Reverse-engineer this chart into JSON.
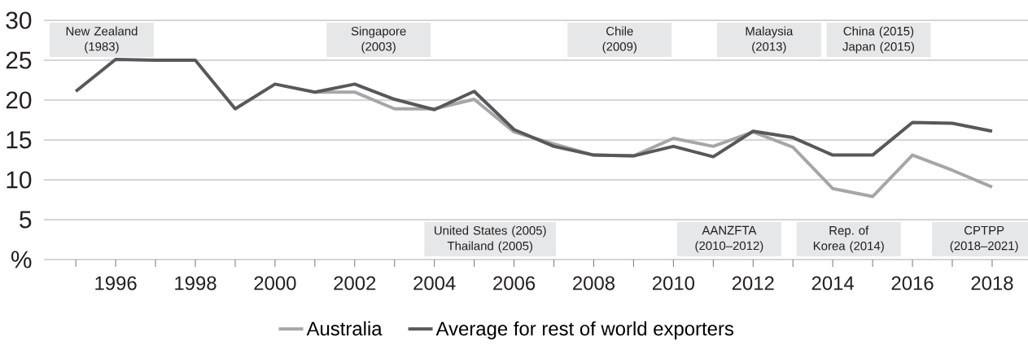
{
  "chart_data": {
    "type": "line",
    "x": [
      1995,
      1996,
      1997,
      1998,
      1999,
      2000,
      2001,
      2002,
      2003,
      2004,
      2005,
      2006,
      2007,
      2008,
      2009,
      2010,
      2011,
      2012,
      2013,
      2014,
      2015,
      2016,
      2017,
      2018
    ],
    "series": [
      {
        "name": "Australia",
        "color": "#a6a6a8",
        "values": [
          null,
          null,
          null,
          null,
          null,
          null,
          21.0,
          21.0,
          18.9,
          18.9,
          20.1,
          16.0,
          14.5,
          13.1,
          13.0,
          15.2,
          14.2,
          16.0,
          14.1,
          8.9,
          7.9,
          13.1,
          11.2,
          9.1
        ]
      },
      {
        "name": "Average for rest of world exporters",
        "color": "#58585a",
        "values": [
          21.1,
          25.1,
          25.0,
          25.0,
          18.9,
          22.0,
          21.0,
          22.0,
          20.1,
          18.8,
          21.1,
          16.3,
          14.2,
          13.1,
          13.0,
          14.2,
          12.9,
          16.1,
          15.3,
          13.1,
          13.1,
          17.2,
          17.1,
          16.1
        ]
      }
    ],
    "xlim": [
      1994.2,
      2018.9
    ],
    "ylim": [
      0,
      30
    ],
    "xticks": [
      {
        "value": 1995,
        "label": null
      },
      1996,
      {
        "value": 1997,
        "label": null
      },
      1998,
      {
        "value": 1999,
        "label": null
      },
      2000,
      {
        "value": 2001,
        "label": null
      },
      2002,
      {
        "value": 2003,
        "label": null
      },
      2004,
      {
        "value": 2005,
        "label": null
      },
      2006,
      {
        "value": 2007,
        "label": null
      },
      2008,
      {
        "value": 2009,
        "label": null
      },
      2010,
      {
        "value": 2011,
        "label": null
      },
      2012,
      {
        "value": 2013,
        "label": null
      },
      2014,
      {
        "value": 2015,
        "label": null
      },
      2016,
      {
        "value": 2017,
        "label": null
      },
      2018
    ],
    "yticks": [
      {
        "value": 0,
        "label": "%"
      },
      5,
      10,
      15,
      20,
      25,
      30
    ],
    "grid": "y",
    "legend": "bottom",
    "annotations": [
      "New Zealand (1983)",
      "Singapore (2003)",
      "Chile (2009)",
      "Malaysia (2013)",
      "China (2015) Japan (2015)",
      "United States (2005) Thailand (2005)",
      "AANZFTA (2010–2012)",
      "Rep. of Korea (2014)",
      "CPTPP (2018–2021)"
    ]
  }
}
